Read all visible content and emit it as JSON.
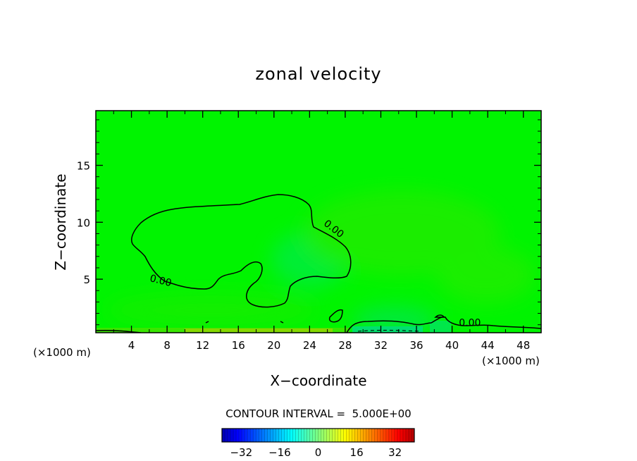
{
  "chart_data": {
    "type": "contour",
    "title": "zonal velocity",
    "xlabel": "X−coordinate",
    "ylabel": "Z−coordinate",
    "x_unit_left": "(×1000 m)",
    "x_unit_right": "(×1000 m)",
    "xlim": [
      0,
      50
    ],
    "ylim": [
      0.3,
      19.8
    ],
    "x_ticks": [
      4,
      8,
      12,
      16,
      20,
      24,
      28,
      32,
      36,
      40,
      44,
      48
    ],
    "x_tick_labels": [
      "4",
      "8",
      "12",
      "16",
      "20",
      "24",
      "28",
      "32",
      "36",
      "40",
      "44",
      "48"
    ],
    "y_ticks": [
      5,
      10,
      15
    ],
    "y_tick_labels": [
      "5",
      "10",
      "15"
    ],
    "background_color": "#00f400",
    "contour_labels": [
      {
        "text": "0.00",
        "x": 7.2,
        "z": 4.6,
        "rotate": 14
      },
      {
        "text": "0.00",
        "x": 26.5,
        "z": 9.2,
        "rotate": 38
      },
      {
        "text": "0.00",
        "x": 42.0,
        "z": 0.9,
        "rotate": 0
      }
    ],
    "contour_interval_text": "CONTOUR INTERVAL =  5.000E+00",
    "colorbar": {
      "min": -40,
      "max": 40,
      "ticks": [
        -32,
        -16,
        0,
        16,
        32
      ],
      "tick_labels": [
        "−32",
        "−16",
        "0",
        "16",
        "32"
      ]
    }
  }
}
